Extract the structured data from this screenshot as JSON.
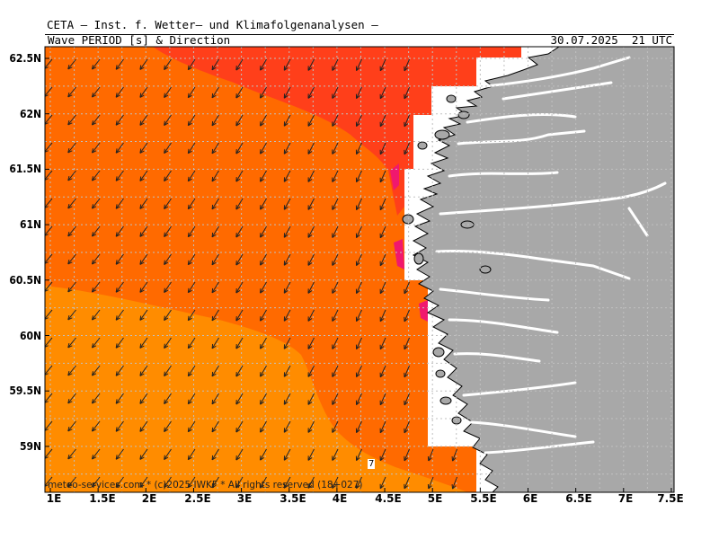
{
  "header": {
    "title": "CETA — Inst. f. Wetter— und Klimafolgenanalysen —",
    "subtitle": "Wave_PERIOD_[s]_&_Direction",
    "datetime": "30.07.2025  21 UTC"
  },
  "map": {
    "lon_range": [
      1,
      7.5
    ],
    "lat_range": [
      58.6,
      62.65
    ],
    "lat_ticks": [
      "62.5N",
      "62N",
      "61.5N",
      "61N",
      "60.5N",
      "60N",
      "59.5N",
      "59N"
    ],
    "lon_ticks": [
      "1E",
      "1.5E",
      "2E",
      "2.5E",
      "3E",
      "3.5E",
      "4E",
      "4.5E",
      "5E",
      "5.5E",
      "6E",
      "6.5E",
      "7E",
      "7.5E"
    ],
    "isoline_label": "7",
    "credit": "meteo-services.com * (c)2025 IWKF * All rights reserved (18+027)",
    "colors": {
      "period_7": "#ff8c00",
      "period_8": "#ff6a00",
      "period_9": "#ff3f1a",
      "period_10": "#f0186e",
      "land": "#a8a8a8",
      "no_data": "#ffffff"
    }
  }
}
